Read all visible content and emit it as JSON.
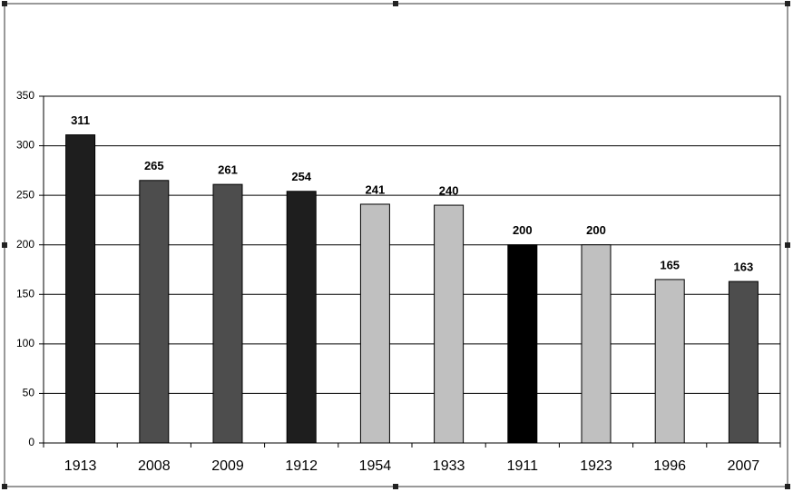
{
  "chart_data": {
    "type": "bar",
    "categories": [
      "1913",
      "2008",
      "2009",
      "1912",
      "1954",
      "1933",
      "1911",
      "1923",
      "1996",
      "2007"
    ],
    "values": [
      311,
      265,
      261,
      254,
      241,
      240,
      200,
      200,
      165,
      163
    ],
    "colors": [
      "#1e1e1e",
      "#4d4d4d",
      "#4d4d4d",
      "#1e1e1e",
      "#c0c0c0",
      "#c0c0c0",
      "#000000",
      "#c0c0c0",
      "#c0c0c0",
      "#4d4d4d"
    ],
    "ylim": [
      0,
      350
    ],
    "yticks": [
      0,
      50,
      100,
      150,
      200,
      250,
      300,
      350
    ],
    "grid": true
  }
}
